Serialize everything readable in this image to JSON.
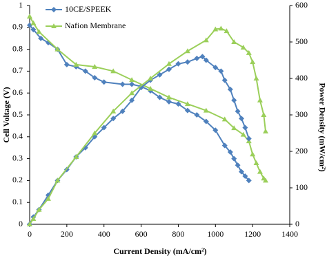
{
  "chart_data": {
    "type": "line",
    "x_label": "Current Density (mA/cm²)",
    "y_label": "Cell Voltage (V)",
    "y2_label": "Power Density (mW/cm²)",
    "xlim": [
      0,
      1400
    ],
    "xticks": [
      0,
      200,
      400,
      600,
      800,
      1000,
      1200,
      1400
    ],
    "ylim": [
      0,
      1
    ],
    "yticks": [
      0,
      0.1,
      0.2,
      0.3,
      0.4,
      0.5,
      0.6,
      0.7,
      0.8,
      0.9,
      1
    ],
    "y2lim": [
      0,
      600
    ],
    "y2ticks": [
      0,
      100,
      200,
      300,
      400,
      500,
      600
    ],
    "legend": "top-left",
    "series": [
      {
        "name": "10CE/SPEEK",
        "color": "#4f81bd",
        "marker": "diamond",
        "x": [
          0,
          20,
          60,
          100,
          150,
          200,
          250,
          300,
          350,
          400,
          500,
          550,
          600,
          650,
          700,
          750,
          800,
          850,
          900,
          950,
          1000,
          1050,
          1080,
          1100,
          1120,
          1140,
          1160,
          1180
        ],
        "values": [
          0.91,
          0.89,
          0.85,
          0.83,
          0.8,
          0.73,
          0.72,
          0.7,
          0.67,
          0.65,
          0.64,
          0.64,
          0.63,
          0.61,
          0.58,
          0.56,
          0.55,
          0.52,
          0.5,
          0.47,
          0.43,
          0.36,
          0.33,
          0.3,
          0.27,
          0.24,
          0.22,
          0.2
        ]
      },
      {
        "name": "Nafion Membrane",
        "color": "#9bcf5a",
        "marker": "triangle",
        "x": [
          0,
          20,
          50,
          150,
          250,
          350,
          450,
          550,
          650,
          750,
          850,
          950,
          1050,
          1100,
          1150,
          1180,
          1200,
          1220,
          1240,
          1260,
          1270
        ],
        "values": [
          0.95,
          0.92,
          0.88,
          0.8,
          0.73,
          0.72,
          0.7,
          0.66,
          0.62,
          0.58,
          0.55,
          0.52,
          0.48,
          0.44,
          0.41,
          0.38,
          0.32,
          0.28,
          0.24,
          0.21,
          0.2
        ]
      },
      {
        "color": "#4f81bd",
        "marker": "diamond",
        "axis": "y2",
        "x": [
          0,
          20,
          50,
          100,
          150,
          200,
          250,
          300,
          350,
          400,
          450,
          500,
          550,
          600,
          650,
          700,
          750,
          800,
          850,
          900,
          930,
          950,
          1000,
          1030,
          1050,
          1080,
          1100,
          1120,
          1140,
          1160,
          1180
        ],
        "values": [
          0,
          20,
          40,
          80,
          120,
          150,
          185,
          210,
          240,
          265,
          290,
          310,
          340,
          375,
          395,
          410,
          425,
          440,
          445,
          455,
          460,
          450,
          430,
          420,
          395,
          370,
          340,
          310,
          290,
          265,
          235
        ]
      },
      {
        "color": "#9bcf5a",
        "marker": "triangle",
        "axis": "y2",
        "x": [
          0,
          20,
          50,
          100,
          150,
          250,
          350,
          450,
          550,
          650,
          750,
          850,
          950,
          1000,
          1030,
          1060,
          1100,
          1150,
          1180,
          1200,
          1220,
          1240,
          1260,
          1270
        ],
        "values": [
          0,
          15,
          40,
          70,
          120,
          185,
          250,
          310,
          360,
          400,
          440,
          475,
          505,
          535,
          537,
          530,
          500,
          485,
          470,
          445,
          400,
          340,
          300,
          255
        ]
      }
    ]
  }
}
